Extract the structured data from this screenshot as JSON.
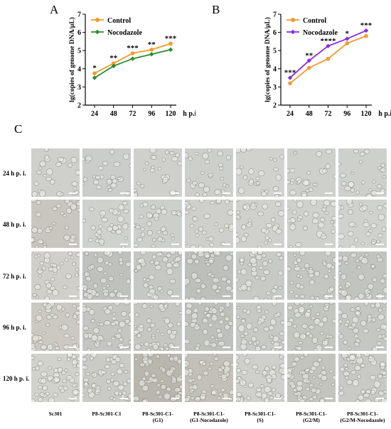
{
  "panels": {
    "A": "A",
    "B": "B",
    "C": "C"
  },
  "chart_data": [
    {
      "type": "line",
      "panel": "A",
      "ylabel": "lg(copies of genome DNA/μL)",
      "xunit": "h p.i.",
      "categories": [
        "24",
        "48",
        "72",
        "96",
        "120"
      ],
      "ylim": [
        2,
        7
      ],
      "yticks": [
        "2",
        "3",
        "4",
        "5",
        "6",
        "7"
      ],
      "series": [
        {
          "name": "Control",
          "color": "#f29a2e",
          "values": [
            3.75,
            4.3,
            4.85,
            5.05,
            5.38
          ]
        },
        {
          "name": "Nocodazole",
          "color": "#2e8b2e",
          "values": [
            3.5,
            4.15,
            4.55,
            4.8,
            5.05
          ]
        }
      ],
      "significance": [
        "*",
        "**",
        "***",
        "**",
        "***"
      ],
      "legend": "top-left"
    },
    {
      "type": "line",
      "panel": "B",
      "ylabel": "lg(copies of genome DNA/μL)",
      "xunit": "h p.i.",
      "categories": [
        "24",
        "48",
        "72",
        "96",
        "120"
      ],
      "ylim": [
        2,
        7
      ],
      "yticks": [
        "2",
        "3",
        "4",
        "5",
        "6",
        "7"
      ],
      "series": [
        {
          "name": "Control",
          "color": "#f29a2e",
          "values": [
            3.2,
            4.05,
            4.55,
            5.4,
            5.8
          ]
        },
        {
          "name": "Nocodazole",
          "color": "#8a2be2",
          "values": [
            3.5,
            4.45,
            5.25,
            5.65,
            6.1
          ]
        }
      ],
      "significance": [
        "***",
        "**",
        "****",
        "*",
        "***"
      ],
      "legend": "top-left"
    }
  ],
  "micrograph_grid": {
    "rows": [
      "24 h p. i.",
      "48 h p. i.",
      "72 h p. i.",
      "96 h p. i.",
      "120 h p. i."
    ],
    "columns": [
      [
        "Sc301",
        ""
      ],
      [
        "P8-Sc301-C1",
        ""
      ],
      [
        "P8-Sc301-C1-",
        "(G1)"
      ],
      [
        "P8-Sc301-C1-",
        "(G1-Nocodazole)"
      ],
      [
        "P8-Sc301-C1-",
        "(S)"
      ],
      [
        "P8-Sc301-C1-",
        "(G2/M)"
      ],
      [
        "P8-Sc301-C1-",
        "(G2/M-Nocodazole)"
      ]
    ]
  }
}
